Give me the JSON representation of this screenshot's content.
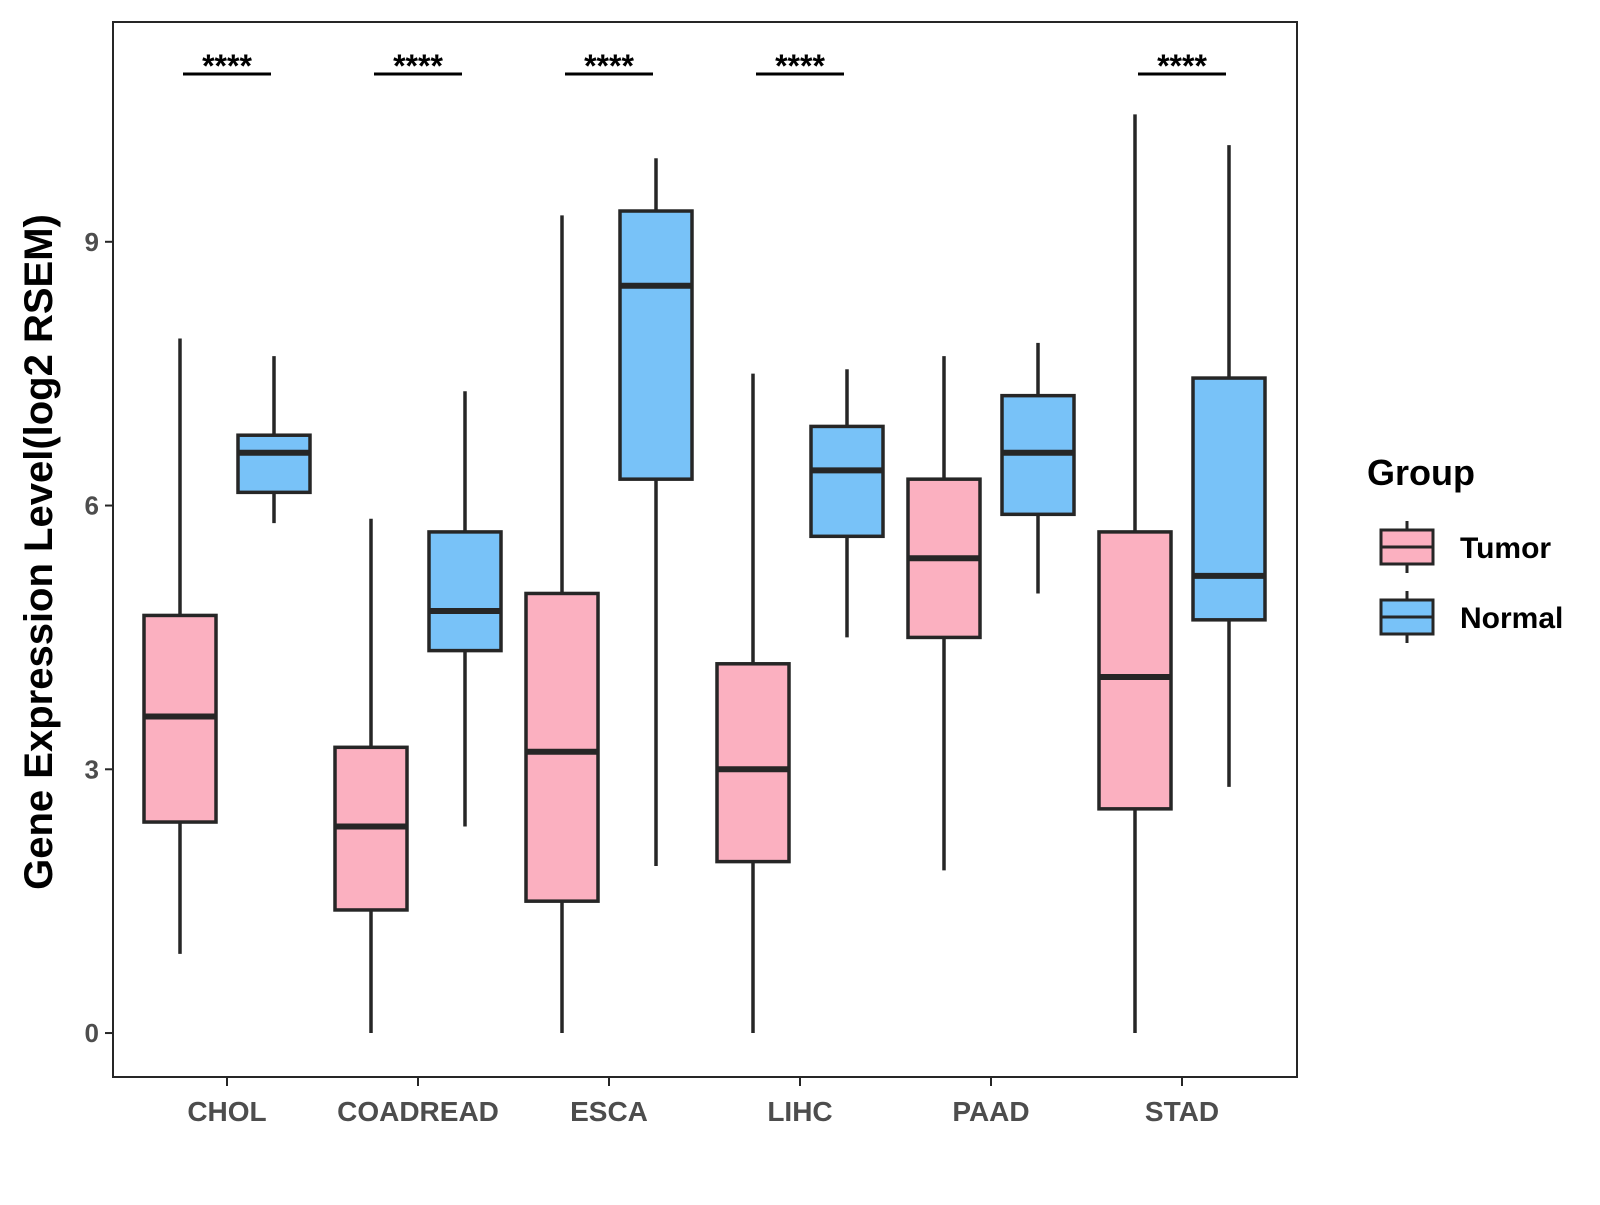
{
  "chart_data": {
    "type": "boxplot",
    "title": "",
    "xlabel": "",
    "ylabel": "Gene Expression Level(log2 RSEM)",
    "ylim": [
      -0.5,
      11.5
    ],
    "yticks": [
      0,
      3,
      6,
      9
    ],
    "grid": false,
    "categories": [
      "CHOL",
      "COADREAD",
      "ESCA",
      "LIHC",
      "PAAD",
      "STAD"
    ],
    "series": [
      {
        "name": "Tumor",
        "color": "#FBB0C0",
        "boxes": [
          {
            "min": 0.9,
            "q1": 2.4,
            "median": 3.6,
            "q3": 4.75,
            "max": 7.9
          },
          {
            "min": 0.0,
            "q1": 1.4,
            "median": 2.35,
            "q3": 3.25,
            "max": 5.85
          },
          {
            "min": 0.0,
            "q1": 1.5,
            "median": 3.2,
            "q3": 5.0,
            "max": 9.3
          },
          {
            "min": 0.0,
            "q1": 1.95,
            "median": 3.0,
            "q3": 4.2,
            "max": 7.5
          },
          {
            "min": 1.85,
            "q1": 4.5,
            "median": 5.4,
            "q3": 6.3,
            "max": 7.7
          },
          {
            "min": 0.0,
            "q1": 2.55,
            "median": 4.05,
            "q3": 5.7,
            "max": 10.45
          }
        ]
      },
      {
        "name": "Normal",
        "color": "#78C2F8",
        "boxes": [
          {
            "min": 5.8,
            "q1": 6.15,
            "median": 6.6,
            "q3": 6.8,
            "max": 7.7
          },
          {
            "min": 2.35,
            "q1": 4.35,
            "median": 4.8,
            "q3": 5.7,
            "max": 7.3
          },
          {
            "min": 1.9,
            "q1": 6.3,
            "median": 8.5,
            "q3": 9.35,
            "max": 9.95
          },
          {
            "min": 4.5,
            "q1": 5.65,
            "median": 6.4,
            "q3": 6.9,
            "max": 7.55
          },
          {
            "min": 5.0,
            "q1": 5.9,
            "median": 6.6,
            "q3": 7.25,
            "max": 7.85
          },
          {
            "min": 2.8,
            "q1": 4.7,
            "median": 5.2,
            "q3": 7.45,
            "max": 10.1
          }
        ]
      }
    ],
    "significance": [
      "****",
      "****",
      "****",
      "****",
      "",
      "****"
    ],
    "legend": {
      "title": "Group",
      "position": "right",
      "entries": [
        "Tumor",
        "Normal"
      ]
    }
  }
}
